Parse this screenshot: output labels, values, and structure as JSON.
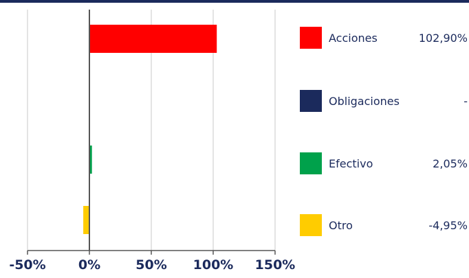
{
  "colors": {
    "top_bar": "#1b2a5c",
    "grid": "#dcdcdc",
    "axis": "#555555",
    "text": "#1b2a5c"
  },
  "chart_data": {
    "type": "bar",
    "orientation": "horizontal",
    "categories": [
      "Acciones",
      "Obligaciones",
      "Efectivo",
      "Otro"
    ],
    "values": [
      102.9,
      null,
      2.05,
      -4.95
    ],
    "value_labels": [
      "102,90%",
      "-",
      "2,05%",
      "-4,95%"
    ],
    "colors": [
      "#ff0000",
      "#1b2a5c",
      "#00a14b",
      "#ffcc00"
    ],
    "xlim": [
      -50,
      150
    ],
    "xticks": [
      -50,
      0,
      50,
      100,
      150
    ],
    "xtick_labels": [
      "-50%",
      "0%",
      "50%",
      "100%",
      "150%"
    ],
    "grid": true,
    "legend": "right"
  }
}
